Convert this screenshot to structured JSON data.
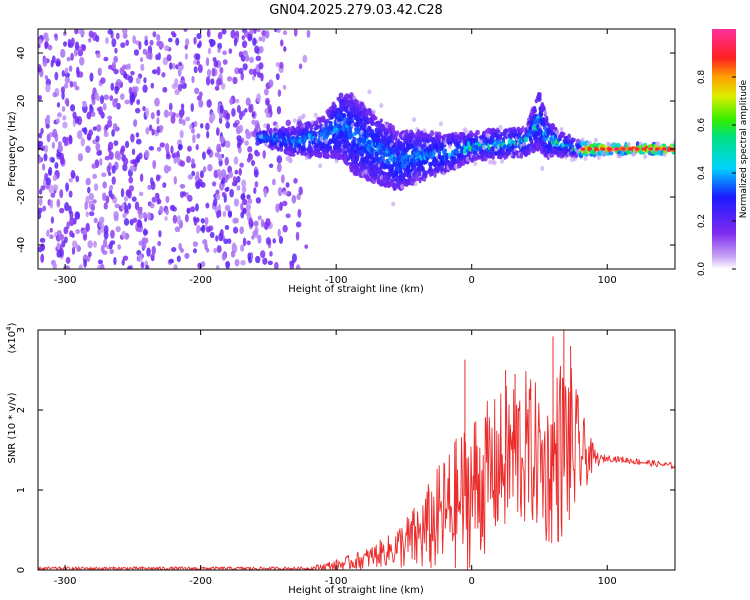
{
  "title": "GN04.2025.279.03.42.C28",
  "colors": {
    "spec_purple": "#7a1ef0",
    "spec_light": "#c79cf5",
    "snr_red": "#ec2b2b",
    "snr_fill": "#f08a8a"
  },
  "chart_data": [
    {
      "type": "heatmap",
      "name": "spectrogram",
      "title": "GN04.2025.279.03.42.C28",
      "xlabel": "Height of straight line (km)",
      "ylabel": "Frequency (Hz)",
      "xlim": [
        -320,
        150
      ],
      "ylim": [
        -50,
        50
      ],
      "xticks": [
        -300,
        -200,
        -100,
        0,
        100
      ],
      "yticks": [
        -40,
        -20,
        0,
        20,
        40
      ],
      "xtick_labels": [
        "-300",
        "-200",
        "-100",
        "0",
        "100"
      ],
      "ytick_labels": [
        "-40",
        "-20",
        "0",
        "20",
        "40"
      ],
      "noise_region_x": [
        -320,
        -120
      ],
      "signal_centerline": {
        "x": [
          -155,
          -130,
          -110,
          -95,
          -85,
          -70,
          -55,
          -40,
          -20,
          0,
          20,
          40,
          50,
          55,
          65,
          80,
          100,
          150
        ],
        "y": [
          5,
          3,
          5,
          10,
          5,
          0,
          -5,
          -3,
          -2,
          1,
          2,
          3,
          12,
          5,
          2,
          0,
          0,
          0
        ]
      },
      "signal_halfwidth": {
        "x": [
          -155,
          -110,
          -90,
          -60,
          -45,
          -20,
          0,
          40,
          50,
          60,
          80,
          100,
          150
        ],
        "y": [
          3,
          8,
          16,
          13,
          11,
          8,
          6,
          6,
          12,
          6,
          3,
          2,
          2
        ]
      },
      "colorbar": {
        "label": "Normalized spectral amplitude",
        "range": [
          0,
          1
        ],
        "ticks": [
          0.0,
          0.2,
          0.4,
          0.6,
          0.8
        ],
        "tick_labels": [
          "0.0",
          "0.2",
          "0.4",
          "0.6",
          "0.8"
        ]
      }
    },
    {
      "type": "line",
      "name": "snr",
      "xlabel": "Height of straight line (km)",
      "ylabel": "SNR (10 * v/v)",
      "multiplier": "(x10",
      "multiplier_exp": "4",
      "xlim": [
        -320,
        150
      ],
      "ylim": [
        0,
        3
      ],
      "xticks": [
        -300,
        -200,
        -100,
        0,
        100
      ],
      "yticks": [
        0,
        1,
        2,
        3
      ],
      "xtick_labels": [
        "-300",
        "-200",
        "-100",
        "0",
        "100"
      ],
      "ytick_labels": [
        "0",
        "1",
        "2",
        "3"
      ],
      "envelope": {
        "x": [
          -320,
          -120,
          -100,
          -80,
          -60,
          -40,
          -30,
          -20,
          -10,
          0,
          10,
          20,
          30,
          40,
          50,
          55,
          60,
          65,
          70,
          75,
          80,
          90,
          95,
          100,
          120,
          150
        ],
        "center": [
          0.02,
          0.02,
          0.06,
          0.13,
          0.25,
          0.4,
          0.55,
          0.7,
          0.85,
          1.0,
          1.15,
          1.3,
          1.45,
          1.5,
          1.4,
          1.2,
          1.3,
          1.5,
          1.55,
          1.5,
          1.45,
          1.4,
          1.38,
          1.4,
          1.36,
          1.3
        ],
        "amp": [
          0.02,
          0.02,
          0.07,
          0.12,
          0.2,
          0.45,
          0.6,
          0.75,
          0.85,
          1.0,
          0.95,
          0.9,
          1.0,
          1.0,
          0.9,
          0.9,
          1.0,
          1.2,
          1.1,
          1.0,
          0.6,
          0.15,
          0.06,
          0.04,
          0.04,
          0.04
        ]
      },
      "peak_spikes": [
        {
          "x": -5,
          "y": 2.63
        },
        {
          "x": 25,
          "y": 2.5
        },
        {
          "x": 32,
          "y": 2.45
        },
        {
          "x": 68,
          "y": 3.0
        },
        {
          "x": 60,
          "y": 2.92
        },
        {
          "x": 73,
          "y": 2.8
        }
      ]
    }
  ]
}
